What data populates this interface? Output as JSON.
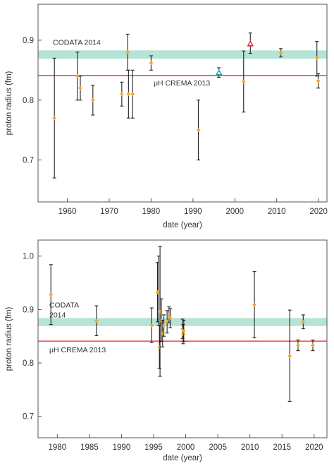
{
  "chart_data": [
    {
      "type": "scatter",
      "xlabel": "date (year)",
      "ylabel": "proton radius (fm)",
      "xlim": [
        1953,
        2022
      ],
      "ylim": [
        0.63,
        0.96
      ],
      "xticks": [
        1960,
        1970,
        1980,
        1990,
        2000,
        2010,
        2020
      ],
      "yticks": [
        0.7,
        0.8,
        0.9
      ],
      "xtick_labels": [
        "1960",
        "1970",
        "1980",
        "1990",
        "2000",
        "2010",
        "2020"
      ],
      "ytick_labels": [
        "0.7",
        "0.8",
        "0.9"
      ],
      "grid": false,
      "colors": {
        "point": "#f5a623",
        "errorbar": "#222222",
        "band": "#a8dfcf",
        "line": "#e8242b",
        "triangle_blue": "#22a3b8",
        "triangle_red": "#d4213d",
        "axis": "#555555"
      },
      "band": {
        "label": "CODATA 2014",
        "y_low": 0.869,
        "y_high": 0.883
      },
      "reference_line": {
        "label": "μH CREMA 2013",
        "y": 0.8409
      },
      "points": [
        {
          "x": 1956.9,
          "y": 0.77,
          "low": 0.67,
          "high": 0.87,
          "marker": "diamond"
        },
        {
          "x": 1962.4,
          "y": 0.84,
          "low": 0.8,
          "high": 0.88,
          "marker": "diamond"
        },
        {
          "x": 1963.1,
          "y": 0.82,
          "low": 0.8,
          "high": 0.84,
          "marker": "diamond"
        },
        {
          "x": 1966.1,
          "y": 0.8,
          "low": 0.775,
          "high": 0.825,
          "marker": "diamond"
        },
        {
          "x": 1973.0,
          "y": 0.81,
          "low": 0.79,
          "high": 0.83,
          "marker": "diamond"
        },
        {
          "x": 1974.4,
          "y": 0.88,
          "low": 0.85,
          "high": 0.91,
          "marker": "diamond"
        },
        {
          "x": 1974.6,
          "y": 0.81,
          "low": 0.77,
          "high": 0.85,
          "marker": "diamond"
        },
        {
          "x": 1975.6,
          "y": 0.81,
          "low": 0.77,
          "high": 0.85,
          "marker": "diamond"
        },
        {
          "x": 1980.0,
          "y": 0.862,
          "low": 0.85,
          "high": 0.874,
          "marker": "diamond"
        },
        {
          "x": 1991.3,
          "y": 0.75,
          "low": 0.7,
          "high": 0.8,
          "marker": "diamond"
        },
        {
          "x": 1996.2,
          "y": 0.846,
          "low": 0.838,
          "high": 0.854,
          "marker": "triangle-blue"
        },
        {
          "x": 2002.1,
          "y": 0.831,
          "low": 0.78,
          "high": 0.882,
          "marker": "diamond"
        },
        {
          "x": 2003.7,
          "y": 0.894,
          "low": 0.878,
          "high": 0.912,
          "marker": "triangle-red"
        },
        {
          "x": 2011.0,
          "y": 0.879,
          "low": 0.872,
          "high": 0.886,
          "marker": "diamond"
        },
        {
          "x": 2019.6,
          "y": 0.87,
          "low": 0.84,
          "high": 0.898,
          "marker": "diamond"
        },
        {
          "x": 2019.9,
          "y": 0.832,
          "low": 0.82,
          "high": 0.844,
          "marker": "diamond"
        }
      ]
    },
    {
      "type": "scatter",
      "xlabel": "date (year)",
      "ylabel": "proton radius (fm)",
      "xlim": [
        1977,
        2022
      ],
      "ylim": [
        0.66,
        1.03
      ],
      "xticks": [
        1980,
        1985,
        1990,
        1995,
        2000,
        2005,
        2010,
        2015,
        2020
      ],
      "yticks": [
        0.7,
        0.8,
        0.9,
        1.0
      ],
      "xtick_labels": [
        "1980",
        "1985",
        "1990",
        "1995",
        "2000",
        "2005",
        "2010",
        "2015",
        "2020"
      ],
      "ytick_labels": [
        "0.7",
        "0.8",
        "0.9",
        "1.0"
      ],
      "grid": false,
      "colors": {
        "point": "#f5a623",
        "errorbar": "#222222",
        "band": "#a8dfcf",
        "line": "#e8242b",
        "axis": "#555555"
      },
      "band": {
        "label_lines": [
          "CODATA",
          "2014"
        ],
        "y_low": 0.869,
        "y_high": 0.884
      },
      "reference_line": {
        "label": "μH CREMA 2013",
        "y": 0.8409
      },
      "points": [
        {
          "x": 1979.0,
          "y": 0.928,
          "low": 0.872,
          "high": 0.984
        },
        {
          "x": 1986.1,
          "y": 0.879,
          "low": 0.851,
          "high": 0.907
        },
        {
          "x": 1994.7,
          "y": 0.87,
          "low": 0.838,
          "high": 0.903
        },
        {
          "x": 1995.6,
          "y": 0.932,
          "low": 0.877,
          "high": 0.988
        },
        {
          "x": 1995.8,
          "y": 0.933,
          "low": 0.87,
          "high": 1.0
        },
        {
          "x": 1995.9,
          "y": 0.83,
          "low": 0.79,
          "high": 0.87
        },
        {
          "x": 1996.0,
          "y": 0.896,
          "low": 0.775,
          "high": 1.018
        },
        {
          "x": 1996.2,
          "y": 0.88,
          "low": 0.84,
          "high": 0.92
        },
        {
          "x": 1996.4,
          "y": 0.855,
          "low": 0.83,
          "high": 0.88
        },
        {
          "x": 1996.6,
          "y": 0.87,
          "low": 0.85,
          "high": 0.89
        },
        {
          "x": 1997.1,
          "y": 0.877,
          "low": 0.856,
          "high": 0.898
        },
        {
          "x": 1997.4,
          "y": 0.89,
          "low": 0.875,
          "high": 0.905
        },
        {
          "x": 1997.6,
          "y": 0.884,
          "low": 0.866,
          "high": 0.902
        },
        {
          "x": 1999.5,
          "y": 0.864,
          "low": 0.846,
          "high": 0.882
        },
        {
          "x": 1999.6,
          "y": 0.854,
          "low": 0.836,
          "high": 0.872
        },
        {
          "x": 1999.7,
          "y": 0.86,
          "low": 0.84,
          "high": 0.88
        },
        {
          "x": 2010.7,
          "y": 0.909,
          "low": 0.847,
          "high": 0.971
        },
        {
          "x": 2016.2,
          "y": 0.813,
          "low": 0.728,
          "high": 0.899
        },
        {
          "x": 2017.5,
          "y": 0.833,
          "low": 0.823,
          "high": 0.843
        },
        {
          "x": 2018.3,
          "y": 0.877,
          "low": 0.864,
          "high": 0.89
        },
        {
          "x": 2019.8,
          "y": 0.833,
          "low": 0.823,
          "high": 0.843
        }
      ]
    }
  ]
}
